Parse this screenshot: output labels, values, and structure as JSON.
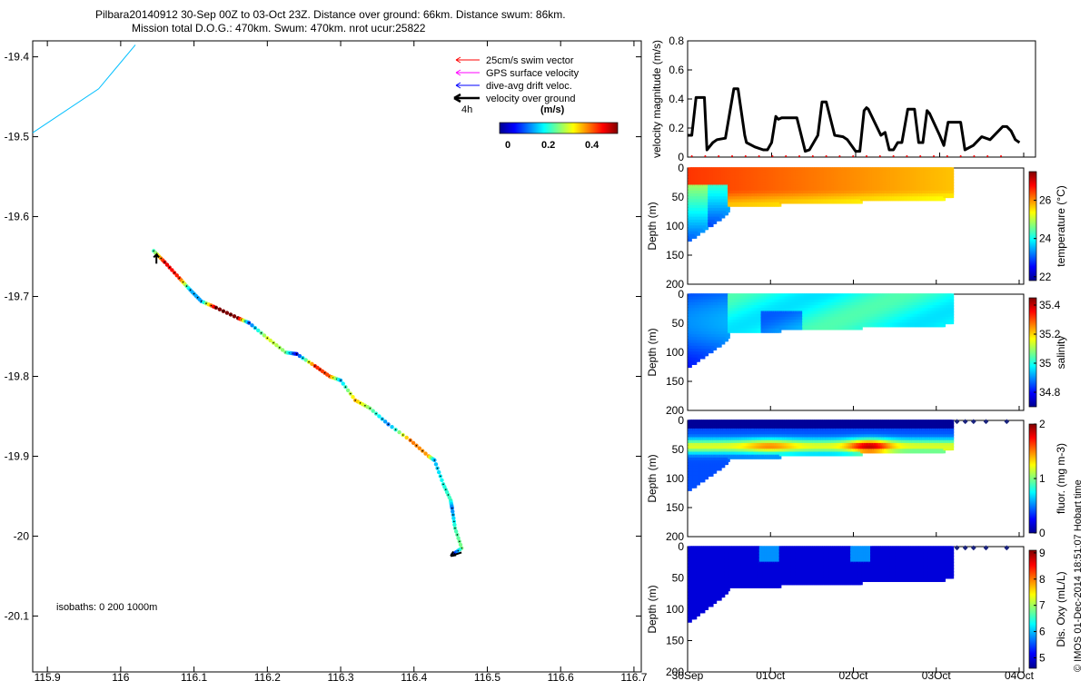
{
  "header": {
    "line1": "Pilbara20140912 30-Sep 00Z to 03-Oct 23Z. Distance over ground: 66km. Distance swum: 86km.",
    "line2": "Mission total D.O.G.: 470km. Swum: 470km. nrot ucur:25822"
  },
  "legend": {
    "items": [
      {
        "label": "25cm/s swim vector",
        "color": "#ff0000"
      },
      {
        "label": "GPS surface velocity",
        "color": "#ff00ff"
      },
      {
        "label": "dive-avg drift veloc.",
        "color": "#0000ff"
      },
      {
        "label": "velocity over ground",
        "color": "#000000"
      }
    ],
    "time_label": "4h",
    "colorbar_title": "(m/s)",
    "colorbar_ticks": [
      "0",
      "0.2",
      "0.4"
    ]
  },
  "map_note": "isobaths: 0    200   1000m",
  "credit": "© IMOS 01-Dec-2014 18:51:07 Hobart time",
  "chart_data": [
    {
      "id": "track-map",
      "type": "scatter",
      "title": "",
      "xlabel": "",
      "ylabel": "",
      "xlim": [
        115.88,
        116.71
      ],
      "ylim": [
        -20.17,
        -19.38
      ],
      "xticks": [
        "115.9",
        "116",
        "116.1",
        "116.2",
        "116.3",
        "116.4",
        "116.5",
        "116.6",
        "116.7"
      ],
      "xtick_values": [
        115.9,
        116.0,
        116.1,
        116.2,
        116.3,
        116.4,
        116.5,
        116.6,
        116.7
      ],
      "yticks": [
        "-19.4",
        "-19.5",
        "-19.6",
        "-19.7",
        "-19.8",
        "-19.9",
        "-20",
        "-20.1"
      ],
      "ytick_values": [
        -19.4,
        -19.5,
        -19.6,
        -19.7,
        -19.8,
        -19.9,
        -20.0,
        -20.1
      ],
      "isobath": {
        "lon": [
          115.88,
          115.97,
          116.02
        ],
        "lat": [
          -19.495,
          -19.44,
          -19.385
        ],
        "color": "#00bfff"
      },
      "track": [
        {
          "lon": 116.045,
          "lat": -19.643,
          "speed": 0.22
        },
        {
          "lon": 116.06,
          "lat": -19.657,
          "speed": 0.45
        },
        {
          "lon": 116.08,
          "lat": -19.677,
          "speed": 0.42
        },
        {
          "lon": 116.095,
          "lat": -19.692,
          "speed": 0.15
        },
        {
          "lon": 116.11,
          "lat": -19.706,
          "speed": 0.14
        },
        {
          "lon": 116.13,
          "lat": -19.714,
          "speed": 0.5
        },
        {
          "lon": 116.16,
          "lat": -19.727,
          "speed": 0.5
        },
        {
          "lon": 116.175,
          "lat": -19.733,
          "speed": 0.1
        },
        {
          "lon": 116.2,
          "lat": -19.752,
          "speed": 0.3
        },
        {
          "lon": 116.225,
          "lat": -19.77,
          "speed": 0.25
        },
        {
          "lon": 116.24,
          "lat": -19.772,
          "speed": 0.05
        },
        {
          "lon": 116.265,
          "lat": -19.787,
          "speed": 0.42
        },
        {
          "lon": 116.285,
          "lat": -19.8,
          "speed": 0.4
        },
        {
          "lon": 116.3,
          "lat": -19.805,
          "speed": 0.15
        },
        {
          "lon": 116.32,
          "lat": -19.83,
          "speed": 0.35
        },
        {
          "lon": 116.34,
          "lat": -19.84,
          "speed": 0.25
        },
        {
          "lon": 116.365,
          "lat": -19.86,
          "speed": 0.12
        },
        {
          "lon": 116.395,
          "lat": -19.88,
          "speed": 0.38
        },
        {
          "lon": 116.42,
          "lat": -19.9,
          "speed": 0.36
        },
        {
          "lon": 116.428,
          "lat": -19.905,
          "speed": 0.15
        },
        {
          "lon": 116.44,
          "lat": -19.935,
          "speed": 0.2
        },
        {
          "lon": 116.45,
          "lat": -19.955,
          "speed": 0.22
        },
        {
          "lon": 116.452,
          "lat": -19.965,
          "speed": 0.12
        },
        {
          "lon": 116.456,
          "lat": -19.99,
          "speed": 0.22
        },
        {
          "lon": 116.465,
          "lat": -20.015,
          "speed": 0.25
        },
        {
          "lon": 116.45,
          "lat": -20.025,
          "speed": 0.0
        }
      ]
    },
    {
      "id": "velocity",
      "type": "line",
      "ylabel": "velocity magnitude (m/s)",
      "xlim": [
        0,
        4
      ],
      "ylim": [
        0,
        0.8
      ],
      "yticks": [
        "0",
        "0.2",
        "0.4",
        "0.6",
        "0.8"
      ],
      "ytick_values": [
        0,
        0.2,
        0.4,
        0.6,
        0.8
      ],
      "x": [
        0.0,
        0.05,
        0.1,
        0.2,
        0.23,
        0.3,
        0.35,
        0.45,
        0.55,
        0.6,
        0.68,
        0.7,
        0.8,
        0.9,
        0.95,
        1.0,
        1.05,
        1.08,
        1.12,
        1.3,
        1.4,
        1.45,
        1.55,
        1.6,
        1.65,
        1.75,
        1.85,
        1.9,
        2.0,
        2.05,
        2.1,
        2.13,
        2.15,
        2.3,
        2.35,
        2.4,
        2.45,
        2.5,
        2.55,
        2.62,
        2.7,
        2.75,
        2.8,
        2.85,
        2.88,
        3.0,
        3.05,
        3.1,
        3.25,
        3.3,
        3.4,
        3.5,
        3.6,
        3.75,
        3.8,
        3.85,
        3.9,
        3.95
      ],
      "y": [
        0.15,
        0.15,
        0.41,
        0.41,
        0.05,
        0.1,
        0.12,
        0.13,
        0.47,
        0.47,
        0.15,
        0.1,
        0.07,
        0.05,
        0.05,
        0.1,
        0.28,
        0.26,
        0.27,
        0.27,
        0.04,
        0.05,
        0.15,
        0.38,
        0.38,
        0.15,
        0.14,
        0.12,
        0.04,
        0.04,
        0.32,
        0.34,
        0.33,
        0.15,
        0.17,
        0.05,
        0.05,
        0.1,
        0.1,
        0.33,
        0.33,
        0.1,
        0.1,
        0.32,
        0.3,
        0.15,
        0.08,
        0.24,
        0.24,
        0.05,
        0.08,
        0.14,
        0.12,
        0.21,
        0.21,
        0.18,
        0.12,
        0.1
      ]
    },
    {
      "id": "temperature",
      "type": "heatmap",
      "ylabel": "Depth (m)",
      "cbar_label": "temperature (°C)",
      "ylim": [
        0,
        200
      ],
      "yticks": [
        "0",
        "50",
        "100",
        "150",
        "200"
      ],
      "ytick_values": [
        0,
        50,
        100,
        150,
        200
      ],
      "cbar_ticks": [
        "22",
        "24",
        "26"
      ],
      "cbar_tick_values": [
        22,
        24,
        26
      ],
      "crange": [
        21.8,
        27.5
      ]
    },
    {
      "id": "salinity",
      "type": "heatmap",
      "ylabel": "Depth (m)",
      "cbar_label": "salinity",
      "ylim": [
        0,
        200
      ],
      "yticks": [
        "0",
        "50",
        "100",
        "150",
        "200"
      ],
      "ytick_values": [
        0,
        50,
        100,
        150,
        200
      ],
      "cbar_ticks": [
        "34.8",
        "35",
        "35.2",
        "35.4"
      ],
      "cbar_tick_values": [
        34.8,
        35.0,
        35.2,
        35.4
      ],
      "crange": [
        34.7,
        35.45
      ]
    },
    {
      "id": "fluorescence",
      "type": "heatmap",
      "ylabel": "Depth (m)",
      "cbar_label": "fluor. (mg m-3)",
      "ylim": [
        0,
        200
      ],
      "yticks": [
        "0",
        "50",
        "100",
        "150",
        "200"
      ],
      "ytick_values": [
        0,
        50,
        100,
        150,
        200
      ],
      "cbar_ticks": [
        "0",
        "1",
        "2"
      ],
      "cbar_tick_values": [
        0,
        1,
        2
      ],
      "crange": [
        0,
        2
      ]
    },
    {
      "id": "oxygen",
      "type": "heatmap",
      "ylabel": "Depth (m)",
      "cbar_label": "Dis. Oxy (mL/L)",
      "ylim": [
        0,
        200
      ],
      "yticks": [
        "0",
        "50",
        "100",
        "150",
        "200"
      ],
      "ytick_values": [
        0,
        50,
        100,
        150,
        200
      ],
      "cbar_ticks": [
        "5",
        "6",
        "7",
        "8",
        "9"
      ],
      "cbar_tick_values": [
        5,
        6,
        7,
        8,
        9
      ],
      "crange": [
        4.6,
        9.1
      ],
      "xticks": [
        "30Sep",
        "01Oct",
        "02Oct",
        "03Oct",
        "04Oct"
      ],
      "xtick_values": [
        0,
        1,
        2,
        3,
        4
      ]
    }
  ]
}
